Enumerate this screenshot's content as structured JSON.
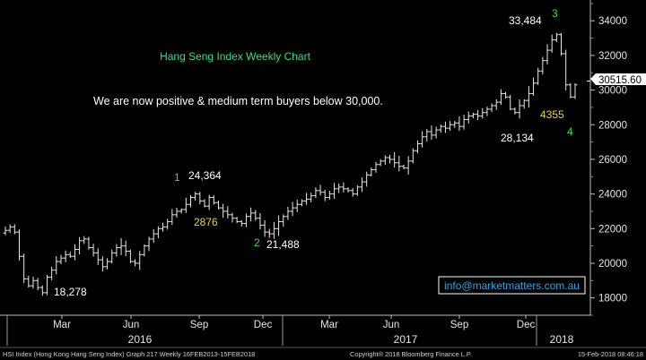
{
  "chart_data": {
    "type": "ohlc",
    "title": "Hang Seng Index Weekly Chart",
    "subtitle": "We are now positive & medium term buyers below 30,000.",
    "xlabel": "",
    "ylabel": "",
    "ylim": [
      17000,
      35200
    ],
    "y_ticks": [
      "18000",
      "20000",
      "22000",
      "24000",
      "26000",
      "28000",
      "30000",
      "32000",
      "34000"
    ],
    "month_ticks": [
      "Mar",
      "Jun",
      "Sep",
      "Dec",
      "Mar",
      "Jun",
      "Sep",
      "Dec"
    ],
    "year_labels": [
      "2016",
      "2017",
      "2018"
    ],
    "last_price": "30515.60",
    "last_price_value": 30515.6,
    "grid": false,
    "weekly_closes": [
      21900,
      22100,
      21800,
      20400,
      19100,
      18700,
      19000,
      18600,
      18300,
      19200,
      19600,
      20100,
      20300,
      20500,
      20400,
      20800,
      21300,
      21400,
      20900,
      20600,
      20200,
      19800,
      20100,
      20600,
      20900,
      21000,
      20700,
      20100,
      20000,
      20500,
      21000,
      21400,
      21700,
      22000,
      22100,
      22400,
      22800,
      23000,
      23100,
      23400,
      23800,
      24000,
      23600,
      23300,
      23800,
      23500,
      23200,
      23000,
      22800,
      22600,
      22400,
      22300,
      22700,
      22900,
      22600,
      22200,
      21800,
      21700,
      22000,
      22400,
      22700,
      23000,
      23200,
      23400,
      23600,
      23700,
      23900,
      24200,
      24100,
      23800,
      24000,
      24300,
      24400,
      24300,
      24200,
      24000,
      24400,
      24700,
      25100,
      25400,
      25700,
      25900,
      26100,
      26000,
      25800,
      25600,
      25500,
      25900,
      26500,
      26900,
      27300,
      27600,
      27400,
      27700,
      27900,
      27800,
      28000,
      28100,
      27900,
      28300,
      28500,
      28600,
      28500,
      28700,
      28900,
      29100,
      29300,
      29800,
      29600,
      28900,
      28700,
      29100,
      29400,
      29800,
      30400,
      31100,
      31700,
      32300,
      32900,
      33200,
      32100,
      30300,
      29600,
      30300
    ],
    "annotations": [
      {
        "label": "18,278",
        "type": "price",
        "color": "#ffffff"
      },
      {
        "label": "1",
        "type": "wave",
        "color": "#35e03a"
      },
      {
        "label": "24,364",
        "type": "price",
        "color": "#ffffff"
      },
      {
        "label": "2876",
        "type": "points",
        "color": "#e8d53a"
      },
      {
        "label": "2",
        "type": "wave",
        "color": "#35e03a"
      },
      {
        "label": "21,488",
        "type": "price",
        "color": "#ffffff"
      },
      {
        "label": "33,484",
        "type": "price",
        "color": "#ffffff"
      },
      {
        "label": "3",
        "type": "wave",
        "color": "#35e03a"
      },
      {
        "label": "4355",
        "type": "points",
        "color": "#e8d53a"
      },
      {
        "label": "28,134",
        "type": "price",
        "color": "#ffffff"
      },
      {
        "label": "4",
        "type": "wave",
        "color": "#35e03a"
      }
    ]
  },
  "email_box": "info@marketmatters.com.au",
  "footer": {
    "left": "HSI Index (Hong Kong Hang Seng Index) Graph 217  Weekly 16FEB2013-15FEB2018",
    "middle": "Copyright® 2018 Bloomberg Finance L.P.",
    "right": "15-Feb-2018 08:46:18"
  },
  "colors": {
    "background": "#000000",
    "bars": "#e8e8e8",
    "title": "#2fe08a",
    "wave": "#35e03a",
    "points": "#e8d53a",
    "price_label": "#ffffff",
    "email": "#2aa7e8"
  }
}
